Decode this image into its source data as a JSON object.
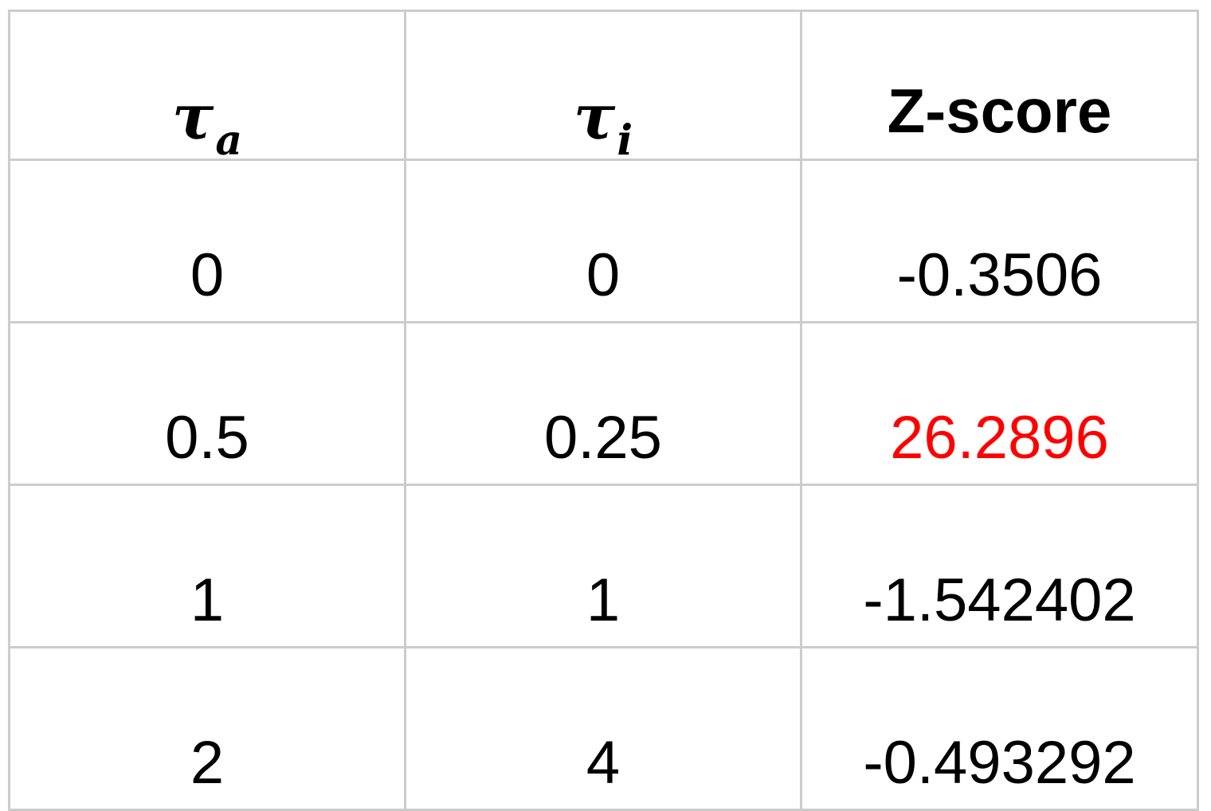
{
  "table": {
    "headers": [
      {
        "symbol": "τ",
        "subscript": "a"
      },
      {
        "symbol": "τ",
        "subscript": "i"
      },
      {
        "text": "Z-score"
      }
    ],
    "rows": [
      {
        "tau_a": "0",
        "tau_i": "0",
        "z_score": "-0.3506"
      },
      {
        "tau_a": "0.5",
        "tau_i": "0.25",
        "z_score": "26.2896"
      },
      {
        "tau_a": "1",
        "tau_i": "1",
        "z_score": "-1.542402"
      },
      {
        "tau_a": "2",
        "tau_i": "4",
        "z_score": "-0.493292"
      }
    ],
    "highlight_color": "#ff0000",
    "highlighted_row": 1
  }
}
